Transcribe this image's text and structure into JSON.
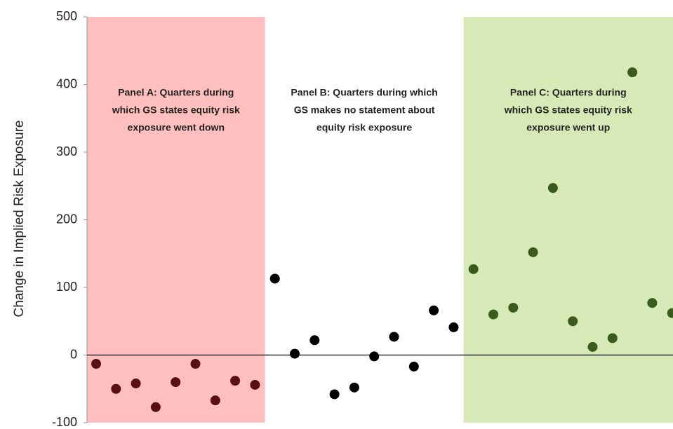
{
  "chart_data": {
    "type": "scatter",
    "y_label": "Change in Implied Risk Exposure",
    "categories": [
      null,
      null,
      null,
      null,
      null,
      null,
      null,
      null,
      null,
      null,
      null,
      null,
      null,
      null,
      null,
      null,
      null,
      null,
      null,
      null,
      null,
      null,
      null,
      null,
      null,
      null,
      null,
      null,
      null,
      null
    ],
    "series": [
      {
        "color": "#5a1010",
        "values": [
          -13,
          -50,
          -42,
          -77,
          -40,
          -13,
          -67,
          -38,
          -44,
          null,
          null,
          null,
          null,
          null,
          null,
          null,
          null,
          null,
          null,
          null,
          null,
          null,
          null,
          null,
          null,
          null,
          null,
          null,
          null,
          null
        ]
      },
      {
        "color": "#000000",
        "values": [
          null,
          null,
          null,
          null,
          null,
          null,
          null,
          null,
          null,
          113,
          2,
          22,
          -58,
          -48,
          -2,
          27,
          -17,
          66,
          41,
          null,
          null,
          null,
          null,
          null,
          null,
          null,
          null,
          null,
          null,
          null
        ]
      },
      {
        "color": "#3b5a1e",
        "values": [
          null,
          null,
          null,
          null,
          null,
          null,
          null,
          null,
          null,
          null,
          null,
          null,
          null,
          null,
          null,
          null,
          null,
          null,
          null,
          127,
          60,
          70,
          152,
          247,
          50,
          12,
          25,
          418,
          77,
          62
        ]
      }
    ],
    "annotations": [
      {
        "background": "#ffbfbf",
        "lines": [
          "Panel A: Quarters during",
          "which GS states equity risk",
          "exposure went down"
        ]
      },
      {
        "lines": [
          "Panel B: Quarters during which",
          "GS makes no statement about",
          "equity risk exposure"
        ]
      },
      {
        "background": "#d6e9b6",
        "lines": [
          "Panel C: Quarters during",
          "which GS states equity risk",
          "exposure went up"
        ]
      }
    ],
    "ylim": [
      -100,
      500
    ],
    "yticks": [
      -100,
      0,
      100,
      200,
      300,
      400,
      500
    ]
  }
}
